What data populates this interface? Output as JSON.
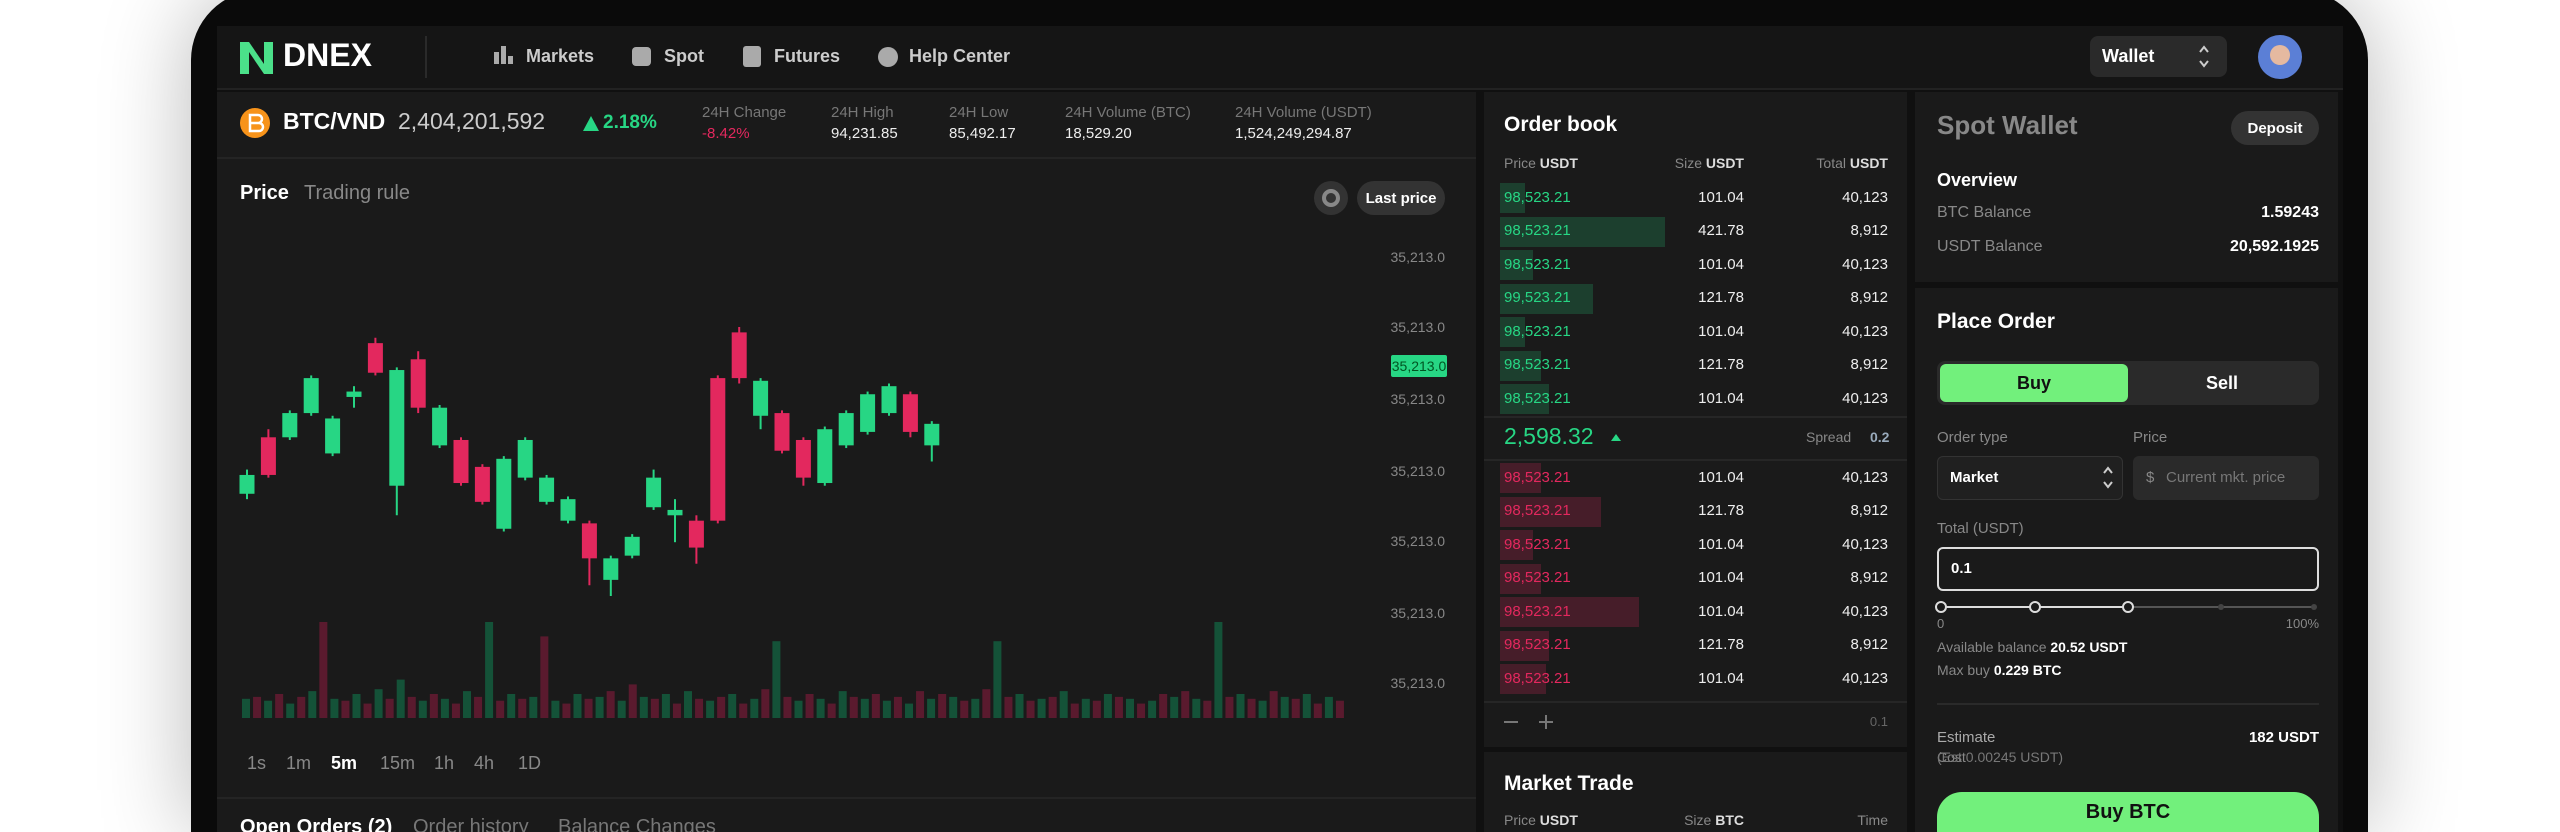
{
  "nav": {
    "logo": "DNEX",
    "items": [
      "Markets",
      "Spot",
      "Futures",
      "Help Center"
    ],
    "wallet": "Wallet"
  },
  "ticker": {
    "pair": "BTC/VND",
    "price": "2,404,201,592",
    "change": "2.18%",
    "stats": [
      {
        "label": "24H Change",
        "value": "-8.42%"
      },
      {
        "label": "24H High",
        "value": "94,231.85"
      },
      {
        "label": "24H Low",
        "value": "85,492.17"
      },
      {
        "label": "24H Volume (BTC)",
        "value": "18,529.20"
      },
      {
        "label": "24H Volume (USDT)",
        "value": "1,524,249,294.87"
      }
    ]
  },
  "chart": {
    "tabs": [
      "Price",
      "Trading rule"
    ],
    "button": "Last price",
    "price_labels": [
      "35,213.0",
      "35,213.0",
      "35,213.0",
      "35,213.0",
      "35,213.0",
      "35,213.0",
      "35,213.0"
    ],
    "current_price": "35,213.0",
    "candles": [
      {
        "o": 38,
        "c": 45,
        "h": 47,
        "l": 36
      },
      {
        "o": 59,
        "c": 45,
        "h": 62,
        "l": 44
      },
      {
        "o": 59,
        "c": 68,
        "h": 69,
        "l": 58
      },
      {
        "o": 68,
        "c": 81,
        "h": 82,
        "l": 67
      },
      {
        "o": 53,
        "c": 66,
        "h": 67,
        "l": 52
      },
      {
        "o": 74,
        "c": 76,
        "h": 78,
        "l": 70
      },
      {
        "o": 94,
        "c": 83,
        "h": 96,
        "l": 82
      },
      {
        "o": 41,
        "c": 84,
        "h": 85,
        "l": 30
      },
      {
        "o": 88,
        "c": 70,
        "h": 91,
        "l": 68
      },
      {
        "o": 56,
        "c": 70,
        "h": 71,
        "l": 55
      },
      {
        "o": 58,
        "c": 42,
        "h": 59,
        "l": 41
      },
      {
        "o": 48,
        "c": 35,
        "h": 49,
        "l": 34
      },
      {
        "o": 25,
        "c": 51,
        "h": 52,
        "l": 24
      },
      {
        "o": 44,
        "c": 58,
        "h": 59,
        "l": 43
      },
      {
        "o": 35,
        "c": 44,
        "h": 45,
        "l": 34
      },
      {
        "o": 28,
        "c": 36,
        "h": 37,
        "l": 27
      },
      {
        "o": 27,
        "c": 14,
        "h": 28,
        "l": 4
      },
      {
        "o": 6,
        "c": 14,
        "h": 15,
        "l": 0
      },
      {
        "o": 15,
        "c": 22,
        "h": 23,
        "l": 14
      },
      {
        "o": 33,
        "c": 44,
        "h": 47,
        "l": 32
      },
      {
        "o": 30,
        "c": 32,
        "h": 36,
        "l": 20
      },
      {
        "o": 28,
        "c": 18,
        "h": 30,
        "l": 12
      },
      {
        "o": 81,
        "c": 28,
        "h": 82,
        "l": 27
      },
      {
        "o": 98,
        "c": 81,
        "h": 100,
        "l": 79
      },
      {
        "o": 67,
        "c": 80,
        "h": 81,
        "l": 62
      },
      {
        "o": 68,
        "c": 54,
        "h": 69,
        "l": 53
      },
      {
        "o": 58,
        "c": 44,
        "h": 59,
        "l": 41
      },
      {
        "o": 42,
        "c": 62,
        "h": 63,
        "l": 41
      },
      {
        "o": 56,
        "c": 68,
        "h": 69,
        "l": 55
      },
      {
        "o": 61,
        "c": 75,
        "h": 76,
        "l": 60
      },
      {
        "o": 68,
        "c": 78,
        "h": 79,
        "l": 67
      },
      {
        "o": 75,
        "c": 61,
        "h": 76,
        "l": 59
      },
      {
        "o": 56,
        "c": 64,
        "h": 65,
        "l": 50
      }
    ],
    "volumes": [
      20,
      22,
      18,
      25,
      15,
      22,
      28,
      100,
      20,
      18,
      25,
      15,
      30,
      20,
      40,
      22,
      18,
      25,
      20,
      15,
      28,
      22,
      100,
      18,
      25,
      20,
      22,
      85,
      18,
      15,
      25,
      20,
      22,
      28,
      18,
      35,
      22,
      20,
      25,
      15,
      28,
      20,
      18,
      22,
      25,
      15,
      20,
      30,
      80,
      22,
      18,
      25,
      20,
      15,
      28,
      22,
      20,
      25,
      18,
      22,
      15,
      28,
      20,
      25,
      22,
      18,
      20,
      30,
      80,
      22,
      25,
      18,
      20,
      22,
      28,
      15,
      20,
      18,
      25,
      22,
      20,
      15,
      18,
      25,
      22,
      28,
      20,
      18,
      100,
      22,
      25,
      20,
      18,
      28,
      22,
      20,
      25,
      15,
      22,
      18
    ],
    "intervals": [
      "1s",
      "1m",
      "5m",
      "15m",
      "1h",
      "4h",
      "1D"
    ]
  },
  "orders_tabs": [
    "Open Orders (2)",
    "Order history",
    "Balance Changes"
  ],
  "order_book": {
    "title": "Order book",
    "headers": [
      {
        "label": "Price",
        "unit": "USDT"
      },
      {
        "label": "Size",
        "unit": "USDT"
      },
      {
        "label": "Total",
        "unit": "USDT"
      }
    ],
    "asks": [
      [
        "98,523.21",
        "101.04",
        "40,123"
      ],
      [
        "98,523.21",
        "421.78",
        "8,912"
      ],
      [
        "98,523.21",
        "101.04",
        "40,123"
      ],
      [
        "99,523.21",
        "121.78",
        "8,912"
      ],
      [
        "98,523.21",
        "101.04",
        "40,123"
      ],
      [
        "98,523.21",
        "121.78",
        "8,912"
      ],
      [
        "98,523.21",
        "101.04",
        "40,123"
      ]
    ],
    "mid_price": "2,598.32",
    "spread_label": "Spread",
    "spread": "0.2",
    "bids": [
      [
        "98,523.21",
        "101.04",
        "40,123"
      ],
      [
        "98,523.21",
        "121.78",
        "8,912"
      ],
      [
        "98,523.21",
        "101.04",
        "40,123"
      ],
      [
        "98,523.21",
        "101.04",
        "8,912"
      ],
      [
        "98,523.21",
        "101.04",
        "40,123"
      ],
      [
        "98,523.21",
        "121.78",
        "8,912"
      ],
      [
        "98,523.21",
        "101.04",
        "40,123"
      ]
    ],
    "step": "0.1"
  },
  "market_trade": {
    "title": "Market Trade",
    "headers": [
      {
        "label": "Price",
        "unit": "USDT"
      },
      {
        "label": "Size",
        "unit": "BTC"
      },
      {
        "label": "Time"
      }
    ]
  },
  "wallet": {
    "title": "Spot Wallet",
    "deposit": "Deposit",
    "overview": "Overview",
    "balances": [
      {
        "label": "BTC Balance",
        "value": "1.59243"
      },
      {
        "label": "USDT Balance",
        "value": "20,592.1925"
      }
    ]
  },
  "place_order": {
    "title": "Place Order",
    "buy": "Buy",
    "sell": "Sell",
    "order_type_label": "Order type",
    "order_type": "Market",
    "price_label": "Price",
    "price_currency": "$",
    "price_placeholder": "Current mkt. price",
    "total_label": "Total (USDT)",
    "total": "0.1",
    "slider_min": "0",
    "slider_max": "100%",
    "available_label": "Available balance",
    "available": "20.52 USDT",
    "max_buy_label": "Max buy",
    "max_buy": "0.229 BTC",
    "estimate_label": "Estimate",
    "estimate": "182 USDT",
    "cost_label": "Cost",
    "cost": "(Est 0.00245 USDT)",
    "submit": "Buy BTC"
  }
}
